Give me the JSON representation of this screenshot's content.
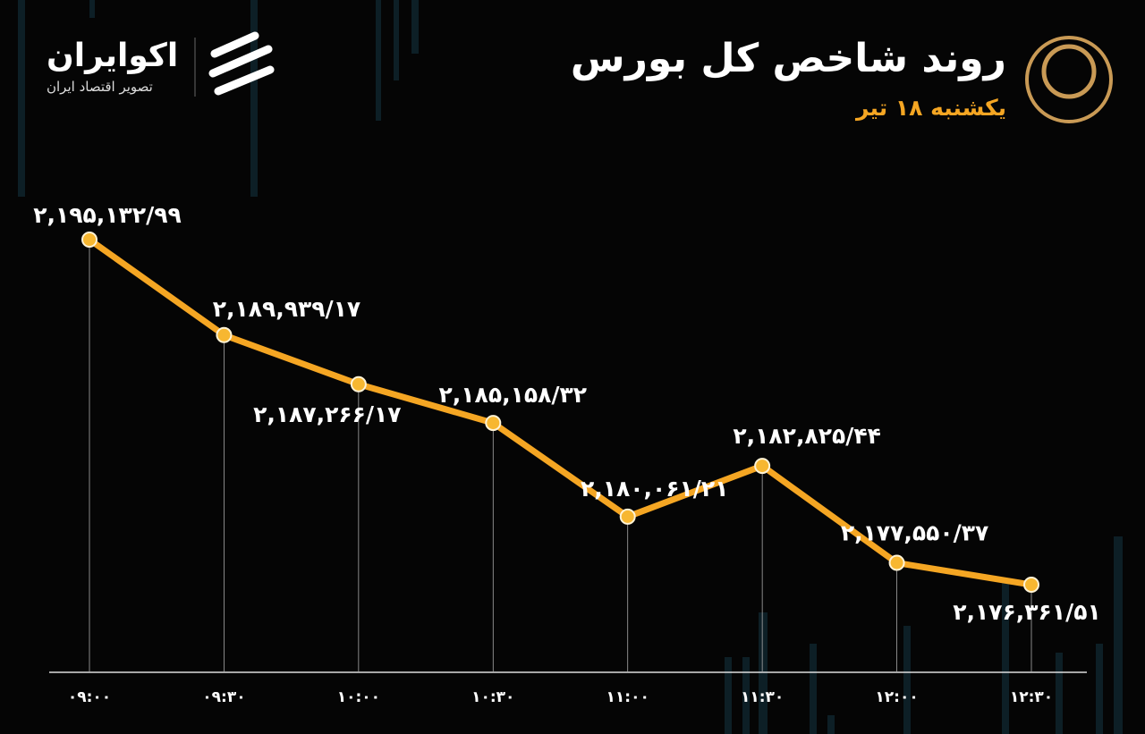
{
  "brand": {
    "name": "اکوایران",
    "tagline": "تصویر اقتصاد ایران"
  },
  "chart_data": {
    "type": "line",
    "title": "روند شاخص کل بورس",
    "subtitle": "یکشنبه ۱۸ تیر",
    "categories": [
      "۰۹:۰۰",
      "۰۹:۳۰",
      "۱۰:۰۰",
      "۱۰:۳۰",
      "۱۱:۰۰",
      "۱۱:۳۰",
      "۱۲:۰۰",
      "۱۲:۳۰"
    ],
    "values": [
      2195132.99,
      2189939.17,
      2187266.17,
      2185158.32,
      2180061.21,
      2182825.44,
      2177550.37,
      2176361.51
    ],
    "value_labels": [
      "۲,۱۹۵,۱۳۲/۹۹",
      "۲,۱۸۹,۹۳۹/۱۷",
      "۲,۱۸۷,۲۶۶/۱۷",
      "۲,۱۸۵,۱۵۸/۳۲",
      "۲,۱۸۰,۰۶۱/۲۱",
      "۲,۱۸۲,۸۲۵/۴۴",
      "۲,۱۷۷,۵۵۰/۳۷",
      "۲,۱۷۶,۳۶۱/۵۱"
    ],
    "color": "#f5a623"
  }
}
